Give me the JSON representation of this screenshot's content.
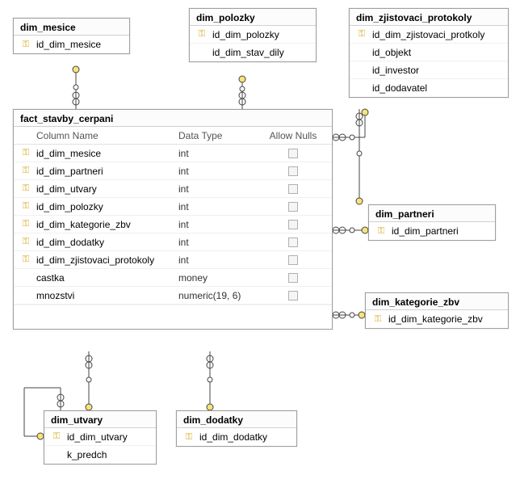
{
  "colors": {
    "background": "#ffffff",
    "border": "#a0a0a0",
    "header_bg": "#fcfcfc",
    "row_divider": "#f0f0f0",
    "text": "#000000",
    "key_icon": "#d4a514"
  },
  "entities": {
    "dim_mesice": {
      "title": "dim_mesice",
      "cols": [
        {
          "name": "id_dim_mesice",
          "pk": true
        }
      ]
    },
    "dim_polozky": {
      "title": "dim_polozky",
      "cols": [
        {
          "name": "id_dim_polozky",
          "pk": true
        },
        {
          "name": "id_dim_stav_dily",
          "pk": false
        }
      ]
    },
    "dim_zjistovaci_protokoly": {
      "title": "dim_zjistovaci_protokoly",
      "cols": [
        {
          "name": "id_dim_zjistovaci_protkoly",
          "pk": true
        },
        {
          "name": "id_objekt",
          "pk": false
        },
        {
          "name": "id_investor",
          "pk": false
        },
        {
          "name": "id_dodavatel",
          "pk": false
        }
      ]
    },
    "dim_partneri": {
      "title": "dim_partneri",
      "cols": [
        {
          "name": "id_dim_partneri",
          "pk": true
        }
      ]
    },
    "dim_kategorie_zbv": {
      "title": "dim_kategorie_zbv",
      "cols": [
        {
          "name": "id_dim_kategorie_zbv",
          "pk": true
        }
      ]
    },
    "dim_utvary": {
      "title": "dim_utvary",
      "cols": [
        {
          "name": "id_dim_utvary",
          "pk": true
        },
        {
          "name": "k_predch",
          "pk": false
        }
      ]
    },
    "dim_dodatky": {
      "title": "dim_dodatky",
      "cols": [
        {
          "name": "id_dim_dodatky",
          "pk": true
        }
      ]
    }
  },
  "fact": {
    "title": "fact_stavby_cerpani",
    "headers": {
      "name": "Column Name",
      "type": "Data Type",
      "null": "Allow Nulls"
    },
    "cols": [
      {
        "name": "id_dim_mesice",
        "type": "int",
        "pk": true,
        "allow_null": false
      },
      {
        "name": "id_dim_partneri",
        "type": "int",
        "pk": true,
        "allow_null": false
      },
      {
        "name": "id_dim_utvary",
        "type": "int",
        "pk": true,
        "allow_null": false
      },
      {
        "name": "id_dim_polozky",
        "type": "int",
        "pk": true,
        "allow_null": false
      },
      {
        "name": "id_dim_kategorie_zbv",
        "type": "int",
        "pk": true,
        "allow_null": false
      },
      {
        "name": "id_dim_dodatky",
        "type": "int",
        "pk": true,
        "allow_null": false
      },
      {
        "name": "id_dim_zjistovaci_protokoly",
        "type": "int",
        "pk": true,
        "allow_null": false
      },
      {
        "name": "castka",
        "type": "money",
        "pk": false,
        "allow_null": false
      },
      {
        "name": "mnozstvi",
        "type": "numeric(19, 6)",
        "pk": false,
        "allow_null": false
      }
    ]
  },
  "connectors": {
    "style": {
      "line_color": "#444444",
      "endpoint_fill": "#f7e37a"
    }
  }
}
